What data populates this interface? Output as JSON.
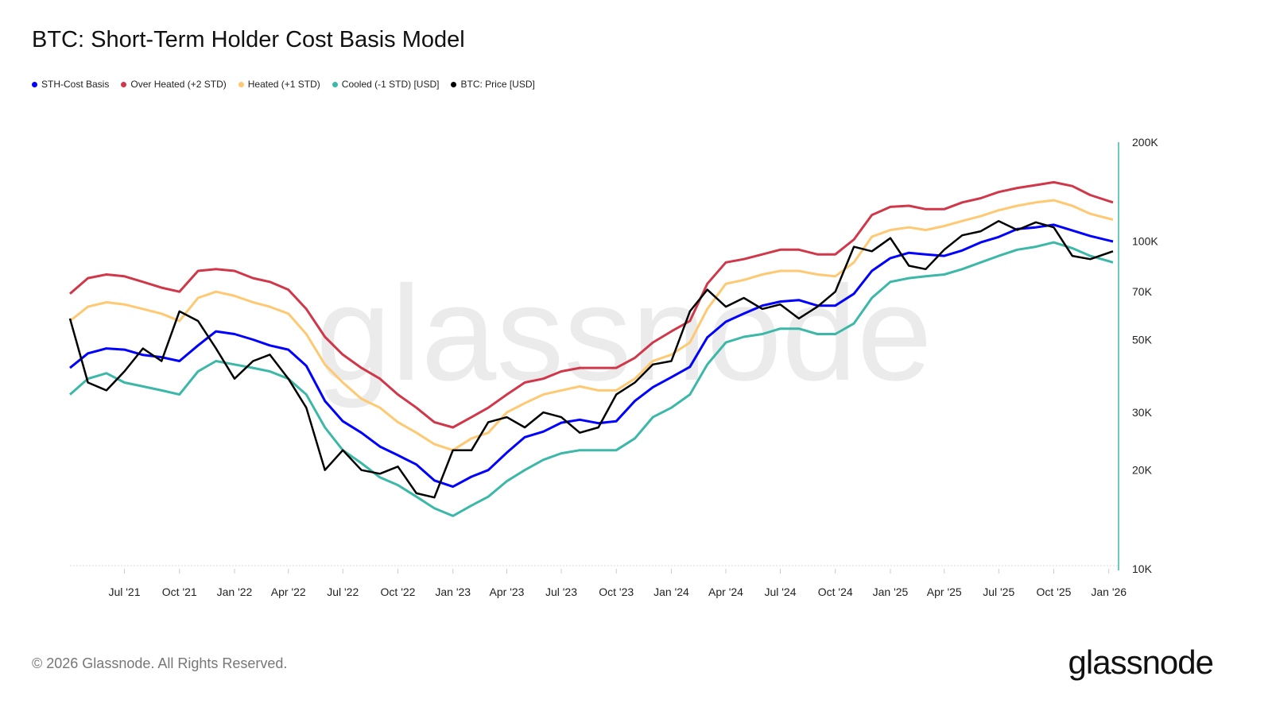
{
  "title": "BTC: Short-Term Holder Cost Basis Model",
  "footer": "© 2026 Glassnode. All Rights Reserved.",
  "logo": "glassnode",
  "watermark": "glassnode",
  "legend": [
    {
      "label": "STH-Cost Basis",
      "color": "#0000ff"
    },
    {
      "label": "Over Heated (+2 STD)",
      "color": "#d0384a"
    },
    {
      "label": "Heated (+1 STD)",
      "color": "#fec972"
    },
    {
      "label": "Cooled (-1 STD) [USD]",
      "color": "#3cb8a8"
    },
    {
      "label": "BTC: Price [USD]",
      "color": "#000000"
    }
  ],
  "chart_data": {
    "type": "line",
    "title": "BTC: Short-Term Holder Cost Basis Model",
    "y_scale": "log",
    "ylim": [
      10000,
      200000
    ],
    "xlim": [
      "2021-04-01",
      "2026-01-08"
    ],
    "y_axis_position": "right",
    "grid": false,
    "legend_position": "top-left",
    "y_ticks": [
      {
        "value": 200000,
        "label": "200K"
      },
      {
        "value": 100000,
        "label": "100K"
      },
      {
        "value": 70000,
        "label": "70K"
      },
      {
        "value": 50000,
        "label": "50K"
      },
      {
        "value": 30000,
        "label": "30K"
      },
      {
        "value": 20000,
        "label": "20K"
      },
      {
        "value": 10000,
        "label": "10K"
      }
    ],
    "x_ticks": [
      {
        "date": "2021-07-01",
        "label": "Jul '21"
      },
      {
        "date": "2021-10-01",
        "label": "Oct '21"
      },
      {
        "date": "2022-01-01",
        "label": "Jan '22"
      },
      {
        "date": "2022-04-01",
        "label": "Apr '22"
      },
      {
        "date": "2022-07-01",
        "label": "Jul '22"
      },
      {
        "date": "2022-10-01",
        "label": "Oct '22"
      },
      {
        "date": "2023-01-01",
        "label": "Jan '23"
      },
      {
        "date": "2023-04-01",
        "label": "Apr '23"
      },
      {
        "date": "2023-07-01",
        "label": "Jul '23"
      },
      {
        "date": "2023-10-01",
        "label": "Oct '23"
      },
      {
        "date": "2024-01-01",
        "label": "Jan '24"
      },
      {
        "date": "2024-04-01",
        "label": "Apr '24"
      },
      {
        "date": "2024-07-01",
        "label": "Jul '24"
      },
      {
        "date": "2024-10-01",
        "label": "Oct '24"
      },
      {
        "date": "2025-01-01",
        "label": "Jan '25"
      },
      {
        "date": "2025-04-01",
        "label": "Apr '25"
      },
      {
        "date": "2025-07-01",
        "label": "Jul '25"
      },
      {
        "date": "2025-10-01",
        "label": "Oct '25"
      },
      {
        "date": "2026-01-01",
        "label": "Jan '26"
      }
    ],
    "x": [
      "2021-04",
      "2021-05",
      "2021-06",
      "2021-07",
      "2021-08",
      "2021-09",
      "2021-10",
      "2021-11",
      "2021-12",
      "2022-01",
      "2022-02",
      "2022-03",
      "2022-04",
      "2022-05",
      "2022-06",
      "2022-07",
      "2022-08",
      "2022-09",
      "2022-10",
      "2022-11",
      "2022-12",
      "2023-01",
      "2023-02",
      "2023-03",
      "2023-04",
      "2023-05",
      "2023-06",
      "2023-07",
      "2023-08",
      "2023-09",
      "2023-10",
      "2023-11",
      "2023-12",
      "2024-01",
      "2024-02",
      "2024-03",
      "2024-04",
      "2024-05",
      "2024-06",
      "2024-07",
      "2024-08",
      "2024-09",
      "2024-10",
      "2024-11",
      "2024-12",
      "2025-01",
      "2025-02",
      "2025-03",
      "2025-04",
      "2025-05",
      "2025-06",
      "2025-07",
      "2025-08",
      "2025-09",
      "2025-10",
      "2025-11",
      "2025-12",
      "2026-01"
    ],
    "series": [
      {
        "name": "Over Heated (+2 STD)",
        "color": "#d0384a",
        "values": [
          69000,
          77000,
          79000,
          78000,
          75000,
          72000,
          70000,
          81000,
          82000,
          81000,
          77000,
          75000,
          71000,
          62000,
          51000,
          45000,
          41000,
          38000,
          34000,
          31000,
          28000,
          27000,
          29000,
          31000,
          34000,
          37000,
          38000,
          40000,
          41000,
          41000,
          41000,
          44000,
          49000,
          53000,
          57000,
          74000,
          86000,
          88000,
          91000,
          94000,
          94000,
          91000,
          91000,
          101000,
          120000,
          127000,
          128000,
          125000,
          125000,
          131000,
          135000,
          141000,
          145000,
          148000,
          151000,
          147000,
          138000,
          131000
        ]
      },
      {
        "name": "Heated (+1 STD)",
        "color": "#fec972",
        "values": [
          57000,
          63000,
          65000,
          64000,
          62000,
          60000,
          57000,
          67000,
          70000,
          68000,
          65000,
          63000,
          60000,
          52000,
          42000,
          37000,
          33000,
          31000,
          28000,
          26000,
          24000,
          23000,
          25000,
          26000,
          30000,
          32000,
          34000,
          35000,
          36000,
          35000,
          35000,
          38000,
          43000,
          45000,
          49000,
          62000,
          74000,
          76000,
          79000,
          81000,
          81000,
          79000,
          78000,
          86000,
          103000,
          108000,
          110000,
          108000,
          111000,
          115000,
          119000,
          124000,
          128000,
          131000,
          133000,
          128000,
          121000,
          116000
        ]
      },
      {
        "name": "STH-Cost Basis",
        "color": "#0000ff",
        "values": [
          41000,
          45400,
          47000,
          46600,
          44900,
          44200,
          43000,
          48000,
          53000,
          52000,
          50000,
          48000,
          46600,
          41600,
          32500,
          28200,
          26000,
          23600,
          22200,
          20800,
          18600,
          17800,
          19100,
          20000,
          22600,
          25200,
          26200,
          27900,
          28500,
          27800,
          28200,
          32500,
          35800,
          38400,
          41300,
          50800,
          56700,
          60000,
          63500,
          65300,
          66000,
          63500,
          63500,
          69000,
          81000,
          88600,
          92000,
          91000,
          90000,
          93500,
          99000,
          102800,
          108700,
          110000,
          112000,
          107600,
          103500,
          99600
        ]
      },
      {
        "name": "Cooled (-1 STD) [USD]",
        "color": "#3cb8a8",
        "values": [
          34000,
          38000,
          39500,
          37000,
          36000,
          35000,
          34000,
          40000,
          43000,
          42000,
          41000,
          40000,
          38000,
          34000,
          27000,
          23000,
          21000,
          19000,
          18000,
          16600,
          15300,
          14500,
          15600,
          16600,
          18500,
          20000,
          21500,
          22500,
          23000,
          23000,
          23000,
          25000,
          29000,
          31000,
          34000,
          42000,
          49000,
          51000,
          52000,
          54000,
          54000,
          52000,
          52000,
          56000,
          67000,
          75000,
          77000,
          78000,
          79000,
          82000,
          86000,
          90000,
          94000,
          96000,
          99000,
          95000,
          90000,
          86000
        ]
      },
      {
        "name": "BTC: Price [USD]",
        "color": "#000000",
        "values": [
          58000,
          37000,
          35000,
          40000,
          47000,
          43000,
          61000,
          57000,
          47000,
          38000,
          43000,
          45000,
          38000,
          31000,
          20000,
          23000,
          20000,
          19500,
          20500,
          17000,
          16500,
          23000,
          23000,
          28000,
          29000,
          27000,
          30000,
          29000,
          26000,
          27000,
          34000,
          37000,
          42000,
          43000,
          61000,
          71000,
          63000,
          67000,
          62000,
          64000,
          58000,
          63000,
          70000,
          96000,
          93000,
          102000,
          84000,
          82000,
          94000,
          104000,
          107000,
          115000,
          108000,
          114000,
          110000,
          90000,
          88000,
          93000
        ]
      }
    ]
  }
}
